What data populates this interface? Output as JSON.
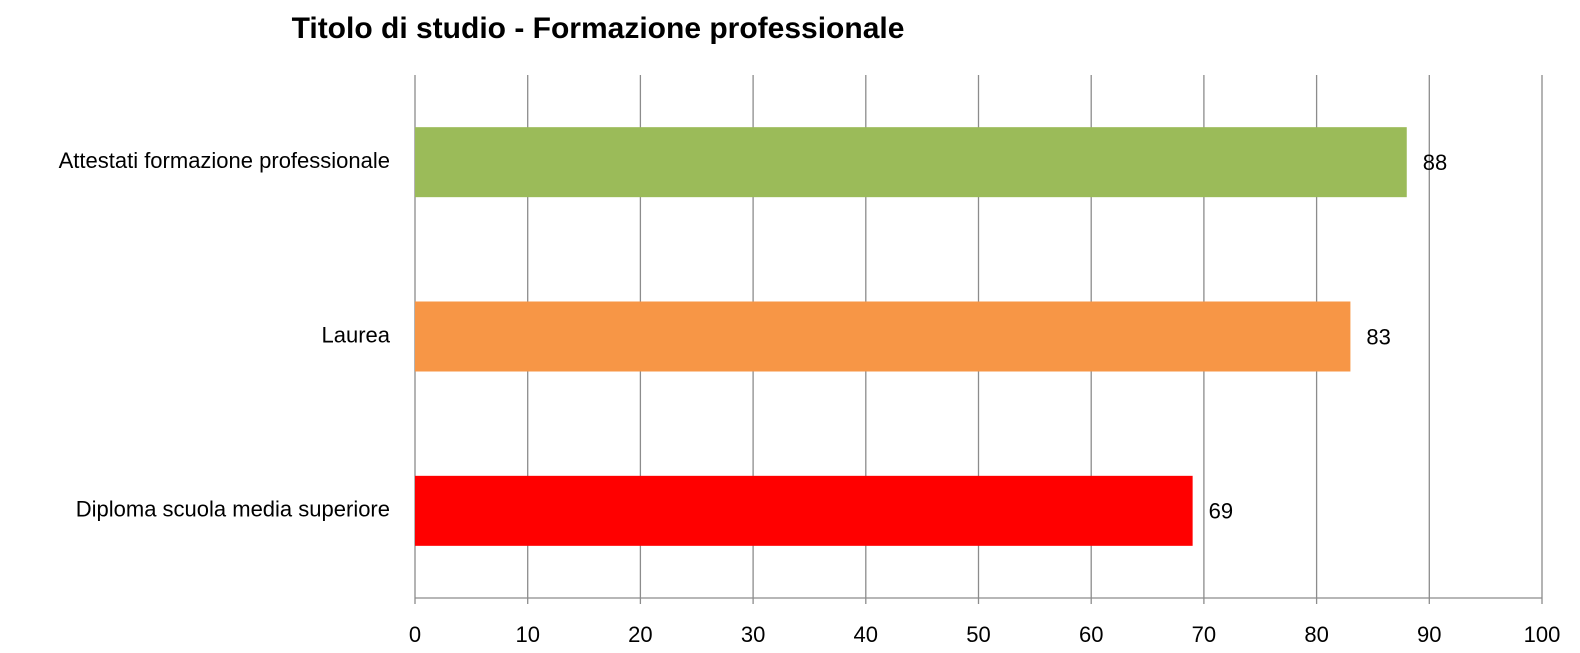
{
  "chart_data": {
    "type": "bar",
    "orientation": "horizontal",
    "title": "Titolo di studio - Formazione professionale",
    "categories": [
      "Attestati formazione professionale",
      "Laurea",
      "Diploma scuola media superiore"
    ],
    "values": [
      88,
      83,
      69
    ],
    "colors": [
      "#9bbb59",
      "#f79646",
      "#ff0000"
    ],
    "xlim": [
      0,
      100
    ],
    "xticks": [
      0,
      10,
      20,
      30,
      40,
      50,
      60,
      70,
      80,
      90,
      100
    ],
    "grid": true
  }
}
